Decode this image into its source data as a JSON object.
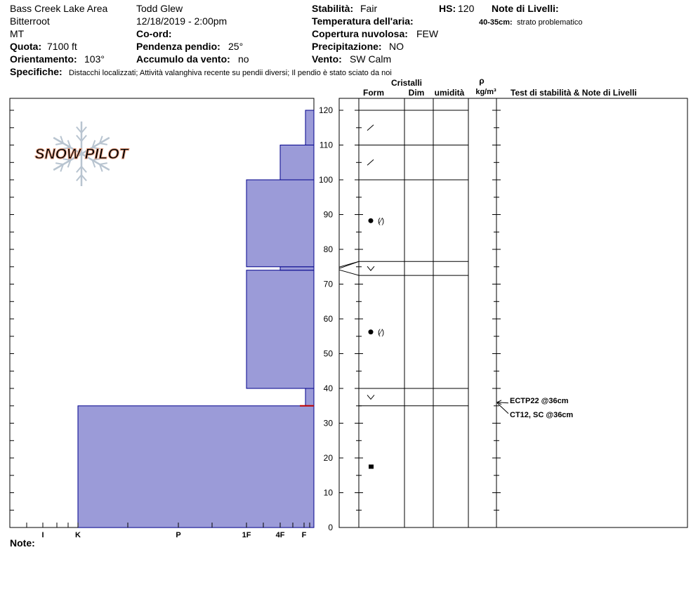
{
  "header": {
    "location": "Bass Creek Lake Area",
    "range": "Bitterroot",
    "state": "MT",
    "elevation_label": "Quota:",
    "elevation_value": "7100 ft",
    "aspect_label": "Orientamento:",
    "aspect_value": "103°",
    "observer": "Todd Glew",
    "datetime": "12/18/2019 - 2:00pm",
    "coord_label": "Co-ord:",
    "slope_label": "Pendenza pendio:",
    "slope_value": "25°",
    "wind_loading_label": "Accumulo da vento:",
    "wind_loading_value": "no",
    "stability_label": "Stabilità:",
    "stability_value": "Fair",
    "air_temp_label": "Temperatura dell'aria:",
    "sky_label": "Copertura nuvolosa:",
    "sky_value": "FEW",
    "precip_label": "Precipitazione:",
    "precip_value": "NO",
    "wind_label": "Vento:",
    "wind_value": "SW Calm",
    "hs_label": "HS:",
    "hs_value": "120",
    "layer_notes_label": "Note di Livelli:",
    "layer_note_depth": "40-35cm:",
    "layer_note_text": "strato problematico",
    "specifics_label": "Specifiche:",
    "specifics_value": "Distacchi localizzati;  Attività valanghiva recente su pendii diversi;  Il pendio è stato sciato da noi",
    "notes_label": "Note:"
  },
  "columns": {
    "crystals": "Cristalli",
    "form": "Form",
    "size": "Dim",
    "moisture": "umidità",
    "rho": "ρ",
    "density_unit": "kg/m³",
    "tests": "Test di stabilità & Note di Livelli"
  },
  "logo": {
    "text": "SNOW PILOT",
    "colors": {
      "fill": "#f6d2c0",
      "stroke": "#e8a184",
      "flake": "#b8c4d0"
    }
  },
  "colors": {
    "layer_fill": "#9b9bd8",
    "layer_stroke": "#00008b",
    "weak_layer": "#c00000"
  },
  "tests": [
    {
      "text": "ECTP22 @36cm",
      "depth_cm": 36
    },
    {
      "text": "CT12, SC @36cm",
      "depth_cm": 36
    }
  ],
  "chart_data": {
    "type": "bar",
    "y_axis": {
      "range": [
        0,
        120
      ],
      "ticks": [
        0,
        10,
        20,
        30,
        40,
        50,
        60,
        70,
        80,
        90,
        100,
        110,
        120
      ]
    },
    "hardness_scale": [
      "I",
      "K",
      "P",
      "1F",
      "4F",
      "F"
    ],
    "hardness_profile": [
      {
        "bottom": 0,
        "top": 35,
        "hardness": "K"
      },
      {
        "bottom": 35,
        "top": 40,
        "hardness": "F+"
      },
      {
        "bottom": 40,
        "top": 74,
        "hardness": "1F"
      },
      {
        "bottom": 74,
        "top": 75,
        "hardness": "4F"
      },
      {
        "bottom": 75,
        "top": 100,
        "hardness": "1F"
      },
      {
        "bottom": 100,
        "top": 110,
        "hardness": "4F"
      },
      {
        "bottom": 110,
        "top": 120,
        "hardness": "F+"
      }
    ],
    "weak_layer_cm": 35,
    "stratigraphy": {
      "boundaries": [
        0,
        35,
        40,
        72.5,
        76.5,
        100,
        110,
        120
      ],
      "layers": [
        {
          "bottom": 0,
          "top": 35,
          "grain": "rounds-faceted"
        },
        {
          "bottom": 35,
          "top": 40,
          "grain": "depth-hoar"
        },
        {
          "bottom": 40,
          "top": 72.5,
          "grain": "rounds-fragmented"
        },
        {
          "bottom": 72.5,
          "top": 76.5,
          "grain": "depth-hoar"
        },
        {
          "bottom": 76.5,
          "top": 100,
          "grain": "rounds-fragmented"
        },
        {
          "bottom": 100,
          "top": 110,
          "grain": "fragmented"
        },
        {
          "bottom": 110,
          "top": 120,
          "grain": "fragmented"
        }
      ]
    }
  }
}
